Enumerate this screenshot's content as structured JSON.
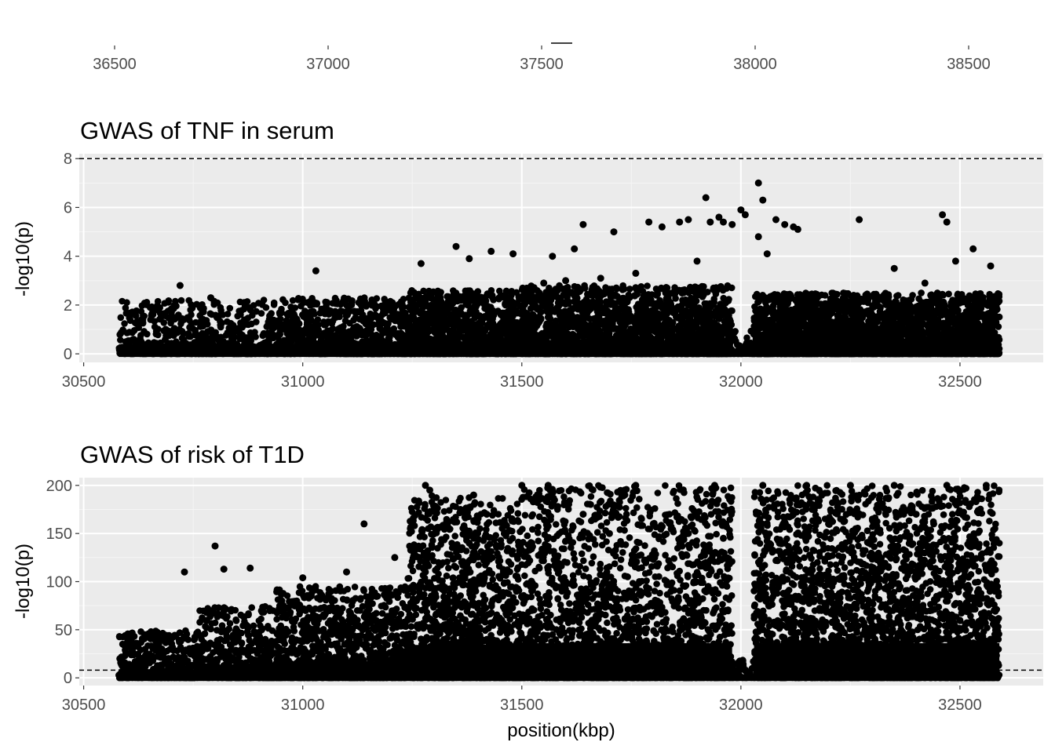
{
  "colors": {
    "panel_bg": "#ebebeb",
    "grid_major": "#ffffff",
    "grid_minor": "#f5f5f5",
    "point": "#000000",
    "threshold": "#000000",
    "tick_text": "#4d4d4d",
    "title_text": "#000000"
  },
  "top_strip": {
    "ticks": [
      "36500",
      "37000",
      "37500",
      "38000",
      "38500"
    ]
  },
  "chart_data": [
    {
      "type": "scatter",
      "title": "GWAS of TNF in serum",
      "xlabel": "",
      "ylabel": "-log10(p)",
      "xlim": [
        30490,
        32690
      ],
      "ylim": [
        -0.35,
        8.2
      ],
      "xticks": [
        30500,
        31000,
        31500,
        32000,
        32500
      ],
      "yticks": [
        0,
        2,
        4,
        6,
        8
      ],
      "threshold_y": 8,
      "threshold_style": "dashed",
      "grid": true,
      "legend": "none",
      "series": [
        {
          "x": [
            30720,
            30790,
            31030,
            31350,
            31430,
            31480,
            31570,
            31620,
            31640,
            31710,
            31790,
            31820,
            31860,
            31880,
            31920,
            31930,
            31950,
            31960,
            31980,
            32000,
            32010,
            32040,
            32050,
            32060,
            32080,
            32100,
            32120,
            32130,
            32270,
            32460,
            32470,
            32530,
            32570,
            31100,
            31270,
            31380,
            31550,
            31600,
            31680,
            31760,
            31900,
            32040,
            32350,
            32420,
            32490
          ],
          "y": [
            2.8,
            2.3,
            3.4,
            4.4,
            4.2,
            4.1,
            4.0,
            4.3,
            5.3,
            5.0,
            5.4,
            5.2,
            5.4,
            5.5,
            6.4,
            5.4,
            5.6,
            5.4,
            5.3,
            5.9,
            5.7,
            7.0,
            6.3,
            4.1,
            5.5,
            5.3,
            5.2,
            5.1,
            5.5,
            5.7,
            5.4,
            4.3,
            3.6,
            2.0,
            3.7,
            3.9,
            2.9,
            3.0,
            3.1,
            3.3,
            3.8,
            4.8,
            3.5,
            2.9,
            3.8
          ],
          "bands": [
            {
              "x0": 30580,
              "x1": 30760,
              "density": 2,
              "ymax": 2.2
            },
            {
              "x0": 30760,
              "x1": 30940,
              "density": 2,
              "ymax": 2.3
            },
            {
              "x0": 30940,
              "x1": 31240,
              "density": 3,
              "ymax": 2.3
            },
            {
              "x0": 31240,
              "x1": 31500,
              "density": 5,
              "ymax": 2.6
            },
            {
              "x0": 31500,
              "x1": 31980,
              "density": 5,
              "ymax": 2.8
            },
            {
              "x0": 31980,
              "x1": 32030,
              "density": 1,
              "ymax": 1.2
            },
            {
              "x0": 32030,
              "x1": 32590,
              "density": 6,
              "ymax": 2.5
            }
          ]
        }
      ]
    },
    {
      "type": "scatter",
      "title": "GWAS of risk of T1D",
      "xlabel": "position(kbp)",
      "ylabel": "-log10(p)",
      "xlim": [
        30490,
        32690
      ],
      "ylim": [
        -8,
        208
      ],
      "xticks": [
        30500,
        31000,
        31500,
        32000,
        32500
      ],
      "yticks": [
        0,
        50,
        100,
        150,
        200
      ],
      "threshold_y": 8,
      "threshold_style": "dashed",
      "grid": true,
      "legend": "none",
      "series": [
        {
          "x": [
            30800,
            30730,
            30820,
            30880,
            31000,
            31100,
            31140,
            31210,
            31280,
            31290,
            31330,
            31360,
            31390,
            31420,
            31460,
            31500,
            31560,
            31640,
            31700,
            31760,
            31800,
            31880,
            31940,
            31960,
            32050,
            32100,
            32150,
            32200,
            32250,
            32300,
            32350,
            32400,
            32440,
            32470,
            32500,
            32560,
            32580,
            31380,
            31420,
            31600
          ],
          "y": [
            137,
            110,
            113,
            114,
            104,
            110,
            160,
            125,
            200,
            195,
            160,
            175,
            190,
            170,
            150,
            200,
            200,
            170,
            150,
            200,
            160,
            150,
            200,
            145,
            200,
            140,
            200,
            160,
            200,
            165,
            200,
            170,
            160,
            200,
            120,
            200,
            90,
            140,
            120,
            100
          ],
          "bands": [
            {
              "x0": 30580,
              "x1": 30760,
              "density": 3,
              "ymax": 50
            },
            {
              "x0": 30760,
              "x1": 30940,
              "density": 3,
              "ymax": 75
            },
            {
              "x0": 30940,
              "x1": 31240,
              "density": 4,
              "ymax": 95
            },
            {
              "x0": 31240,
              "x1": 31500,
              "density": 6,
              "ymax": 190
            },
            {
              "x0": 31500,
              "x1": 31980,
              "density": 5,
              "ymax": 200
            },
            {
              "x0": 31980,
              "x1": 32030,
              "density": 1,
              "ymax": 20
            },
            {
              "x0": 32030,
              "x1": 32590,
              "density": 6,
              "ymax": 200
            }
          ]
        }
      ]
    }
  ]
}
